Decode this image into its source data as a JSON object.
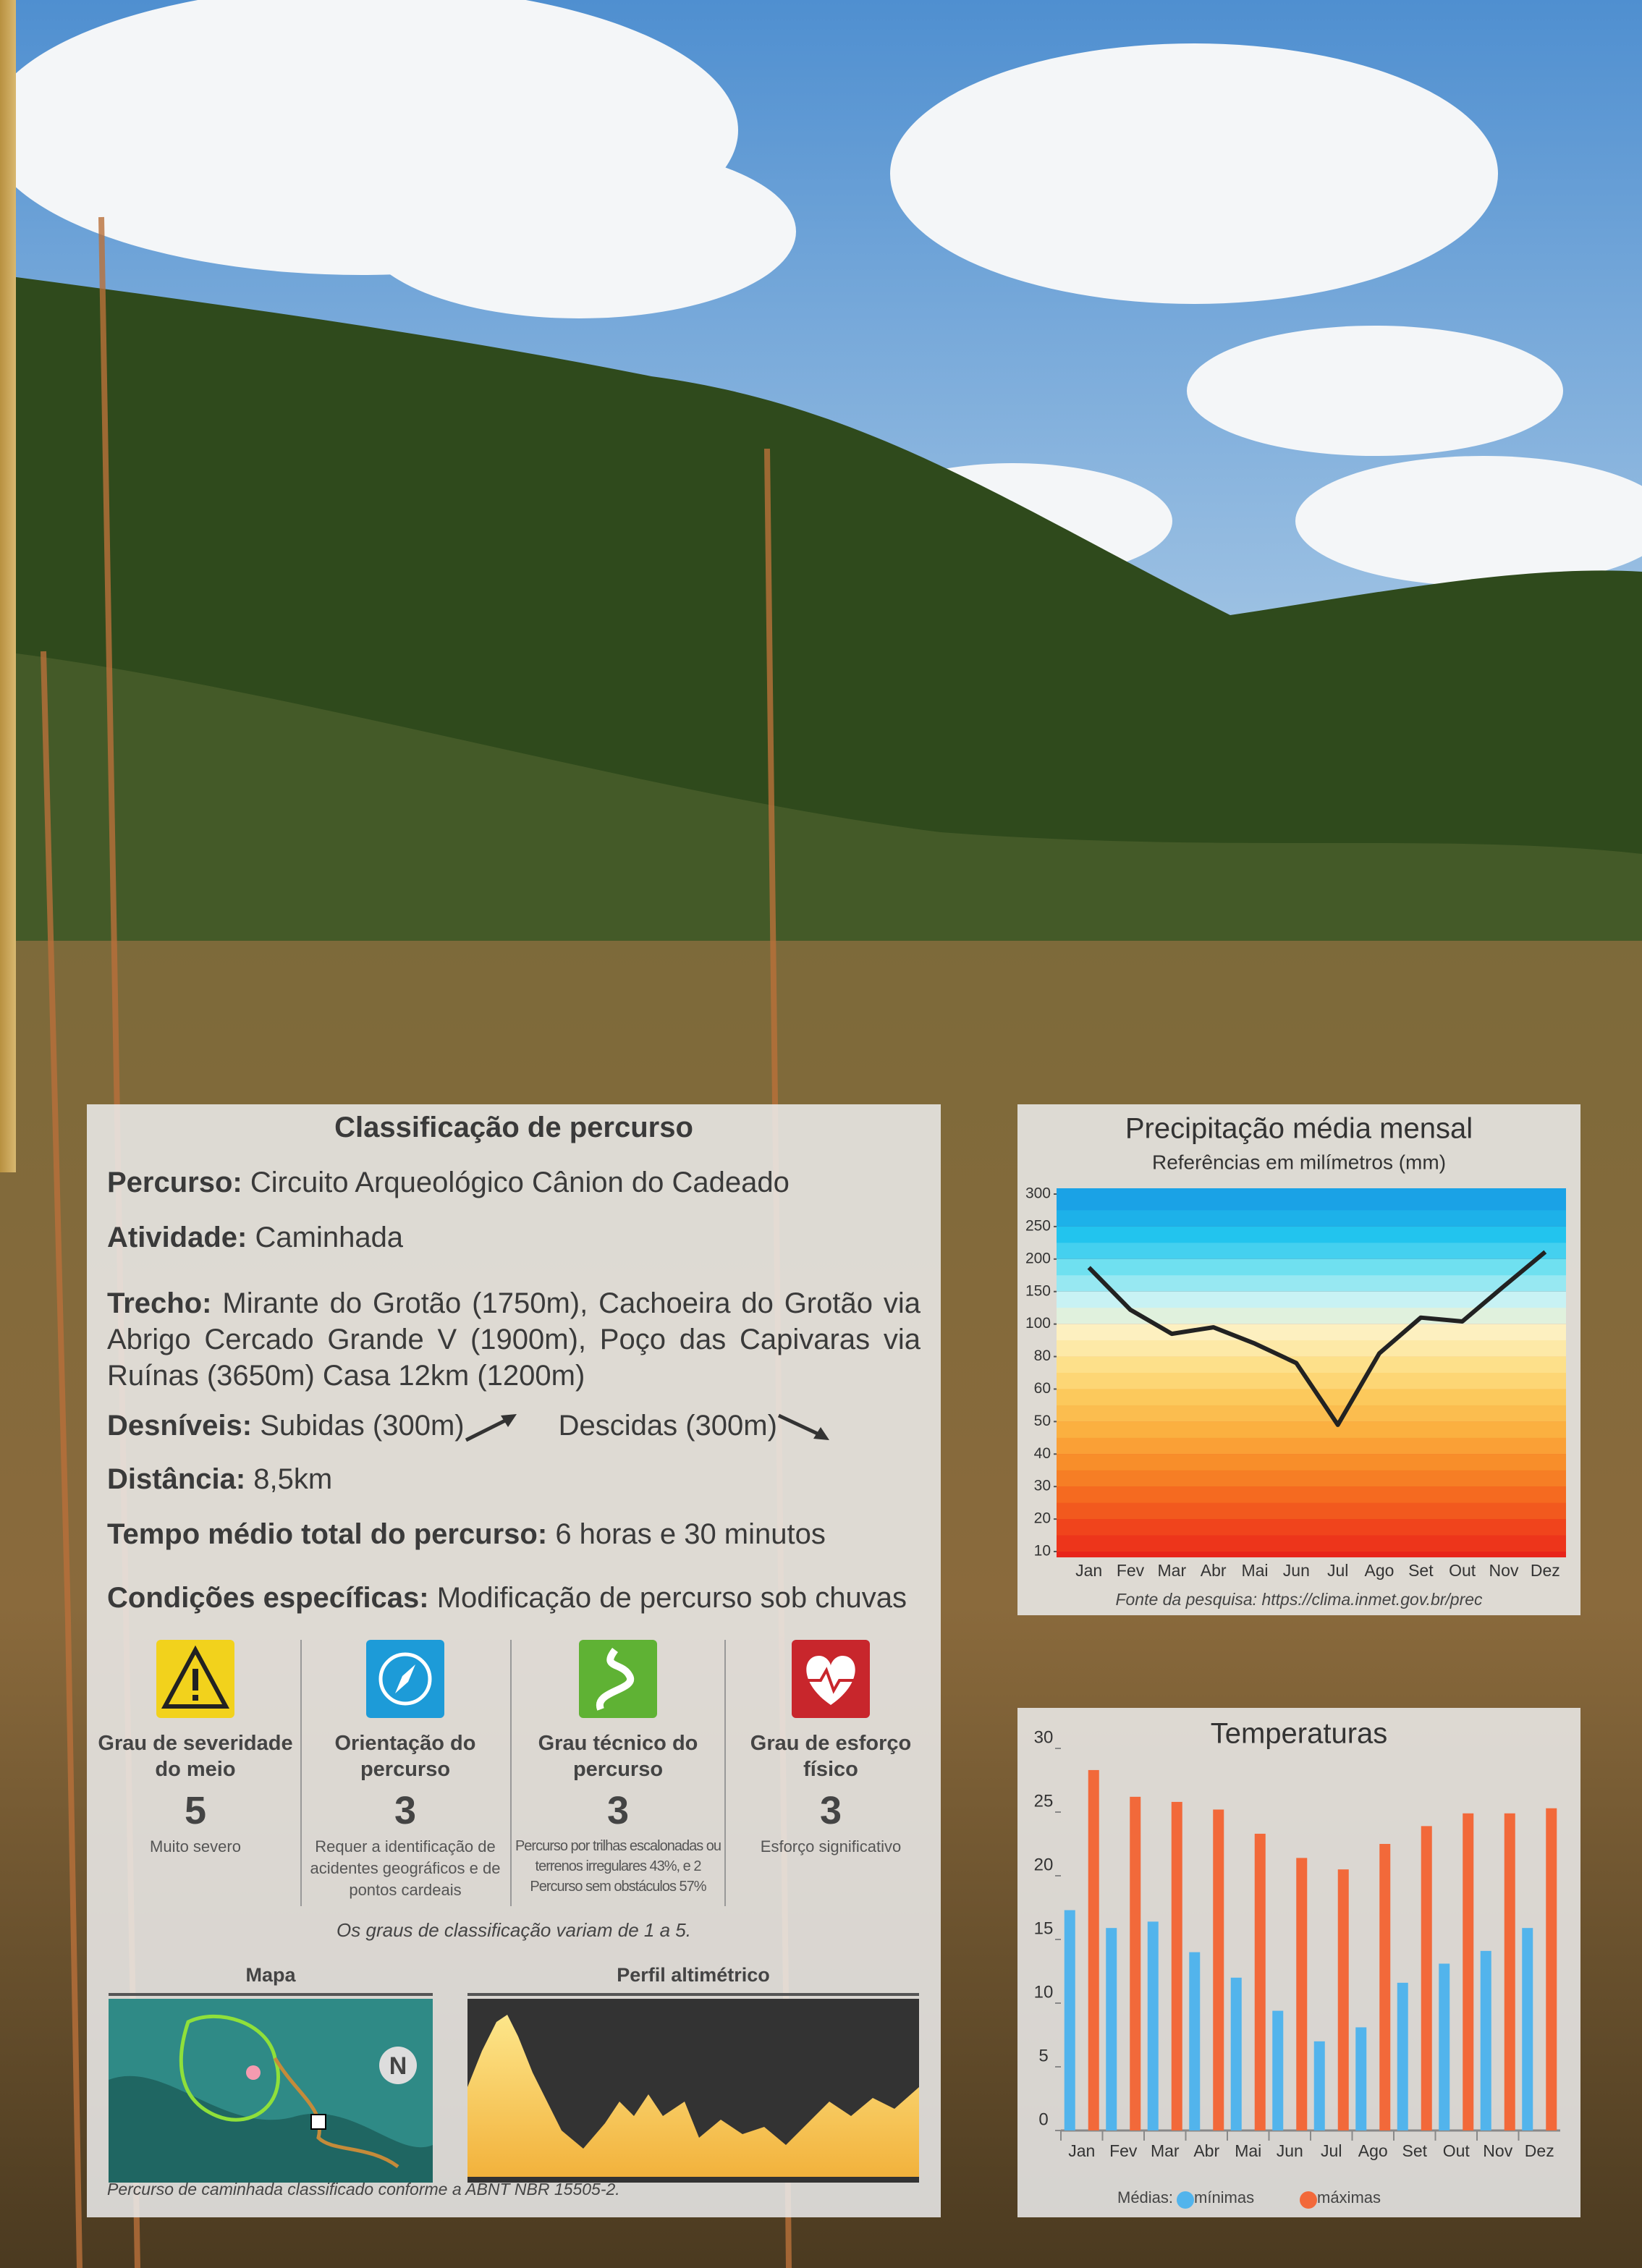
{
  "classification": {
    "title": "Classificação de percurso",
    "percurso": {
      "label": "Percurso:",
      "value": "Circuito Arqueológico Cânion do Cadeado"
    },
    "atividade": {
      "label": "Atividade:",
      "value": "Caminhada"
    },
    "trecho": {
      "label": "Trecho:",
      "value": "Mirante do Grotão (1750m), Cachoeira do Grotão via Abrigo Cercado Grande V (1900m), Poço das Capivaras via Ruínas (3650m) Casa 12km (1200m)"
    },
    "desniveis": {
      "label": "Desníveis:",
      "subidas": "Subidas (300m)",
      "descidas": "Descidas (300m)"
    },
    "distancia": {
      "label": "Distância:",
      "value": "8,5km"
    },
    "tempo": {
      "label": "Tempo médio total do percurso:",
      "value": "6 horas e 30 minutos"
    },
    "condicoes": {
      "label": "Condições específicas:",
      "value": "Modificação de percurso sob chuvas"
    },
    "grades": [
      {
        "title": "Grau de severidade do meio",
        "grade": 5,
        "description": "Muito severo"
      },
      {
        "title": "Orientação do percurso",
        "grade": 3,
        "description": "Requer a identificação de acidentes geográficos e de pontos cardeais"
      },
      {
        "title": "Grau técnico do percurso",
        "grade": 3,
        "description": "Percurso por trilhas escalonadas ou terrenos irregulares 43%, e 2 Percurso sem obstáculos 57%"
      },
      {
        "title": "Grau de esforço físico",
        "grade": 3,
        "description": "Esforço significativo"
      }
    ],
    "scale_note": "Os graus de classificação variam de 1 a 5.",
    "map_label": "Mapa",
    "profile_label": "Perfil altimétrico",
    "footer": "Percurso de caminhada classificado conforme a ABNT NBR 15505-2."
  },
  "chart_data": [
    {
      "type": "line",
      "title": "Precipitação média mensal",
      "subtitle": "Referências em milímetros (mm)",
      "source": "Fonte da pesquisa: https://clima.inmet.gov.br/prec",
      "categories": [
        "Jan",
        "Fev",
        "Mar",
        "Abr",
        "Mai",
        "Jun",
        "Jul",
        "Ago",
        "Set",
        "Out",
        "Nov",
        "Dez"
      ],
      "values": [
        187,
        122,
        94,
        98,
        88,
        76,
        49,
        82,
        110,
        104,
        158,
        211
      ],
      "color": "#222222",
      "ylim": [
        10,
        300
      ],
      "yticks": [
        10,
        20,
        30,
        40,
        50,
        60,
        80,
        100,
        150,
        200,
        250,
        300
      ]
    },
    {
      "type": "bar",
      "title": "Temperaturas",
      "legend_title": "Médias:",
      "categories": [
        "Jan",
        "Fev",
        "Mar",
        "Abr",
        "Mai",
        "Jun",
        "Jul",
        "Ago",
        "Set",
        "Out",
        "Nov",
        "Dez"
      ],
      "series": [
        {
          "name": "mínimas",
          "color": "#52b4ec",
          "values": [
            17.3,
            15.9,
            16.4,
            14.0,
            12.0,
            9.4,
            7.0,
            8.1,
            11.6,
            13.1,
            14.1,
            15.9
          ]
        },
        {
          "name": "máximas",
          "color": "#f2693a",
          "values": [
            28.3,
            26.2,
            25.8,
            25.2,
            23.3,
            21.4,
            20.5,
            22.5,
            23.9,
            24.9,
            24.9,
            25.3
          ]
        }
      ],
      "ylim": [
        0,
        30
      ],
      "yticks": [
        0,
        5,
        10,
        15,
        20,
        25,
        30
      ]
    }
  ]
}
